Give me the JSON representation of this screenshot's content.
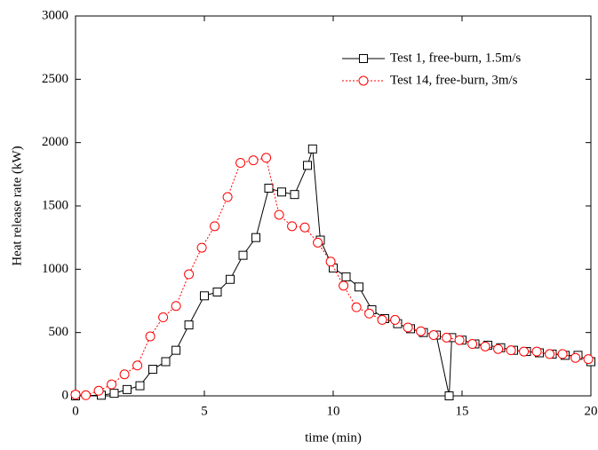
{
  "chart_data": {
    "type": "line",
    "x_label": "time (min)",
    "y_label": "Heat release rate (kW)",
    "xlim": [
      0,
      20
    ],
    "ylim": [
      0,
      3000
    ],
    "xticks": [
      0,
      5,
      10,
      15,
      20
    ],
    "yticks": [
      0,
      500,
      1000,
      1500,
      2000,
      2500,
      3000
    ],
    "legend": "upper right",
    "series": [
      {
        "name": "Test 1, free-burn, 1.5m/s",
        "color": "#000000",
        "marker": "square",
        "dash": "solid",
        "x": [
          0,
          1.0,
          1.5,
          2.0,
          2.5,
          3.0,
          3.5,
          3.9,
          4.4,
          5.0,
          5.5,
          6.0,
          6.5,
          7.0,
          7.5,
          8.0,
          8.5,
          9.0,
          9.2,
          9.5,
          10.0,
          10.5,
          11.0,
          11.5,
          12.0,
          12.5,
          13.0,
          13.5,
          14.0,
          14.5,
          14.6,
          15.0,
          15.5,
          16.0,
          16.5,
          17.0,
          17.5,
          18.0,
          18.5,
          19.0,
          19.5,
          20.0
        ],
        "values": [
          0,
          5,
          20,
          50,
          80,
          210,
          270,
          360,
          560,
          790,
          820,
          920,
          1110,
          1250,
          1640,
          1610,
          1590,
          1820,
          1950,
          1230,
          1010,
          940,
          860,
          680,
          610,
          570,
          530,
          500,
          480,
          0,
          460,
          440,
          410,
          400,
          380,
          360,
          350,
          340,
          330,
          320,
          320,
          270
        ]
      },
      {
        "name": "Test 14, free-burn, 3m/s",
        "color": "#ff0000",
        "marker": "circle",
        "dash": "dotted",
        "x": [
          0,
          0.4,
          0.9,
          1.4,
          1.9,
          2.4,
          2.9,
          3.4,
          3.9,
          4.4,
          4.9,
          5.4,
          5.9,
          6.4,
          6.9,
          7.4,
          7.9,
          8.4,
          8.9,
          9.4,
          9.9,
          10.4,
          10.9,
          11.4,
          11.9,
          12.4,
          12.9,
          13.4,
          13.9,
          14.4,
          14.9,
          15.4,
          15.9,
          16.4,
          16.9,
          17.4,
          17.9,
          18.4,
          18.9,
          19.4,
          19.9
        ],
        "values": [
          10,
          5,
          40,
          90,
          170,
          240,
          470,
          620,
          710,
          960,
          1170,
          1340,
          1570,
          1840,
          1860,
          1880,
          1430,
          1340,
          1330,
          1210,
          1060,
          870,
          700,
          650,
          600,
          600,
          540,
          510,
          480,
          460,
          440,
          410,
          390,
          370,
          360,
          350,
          350,
          330,
          330,
          300,
          290
        ]
      }
    ]
  }
}
